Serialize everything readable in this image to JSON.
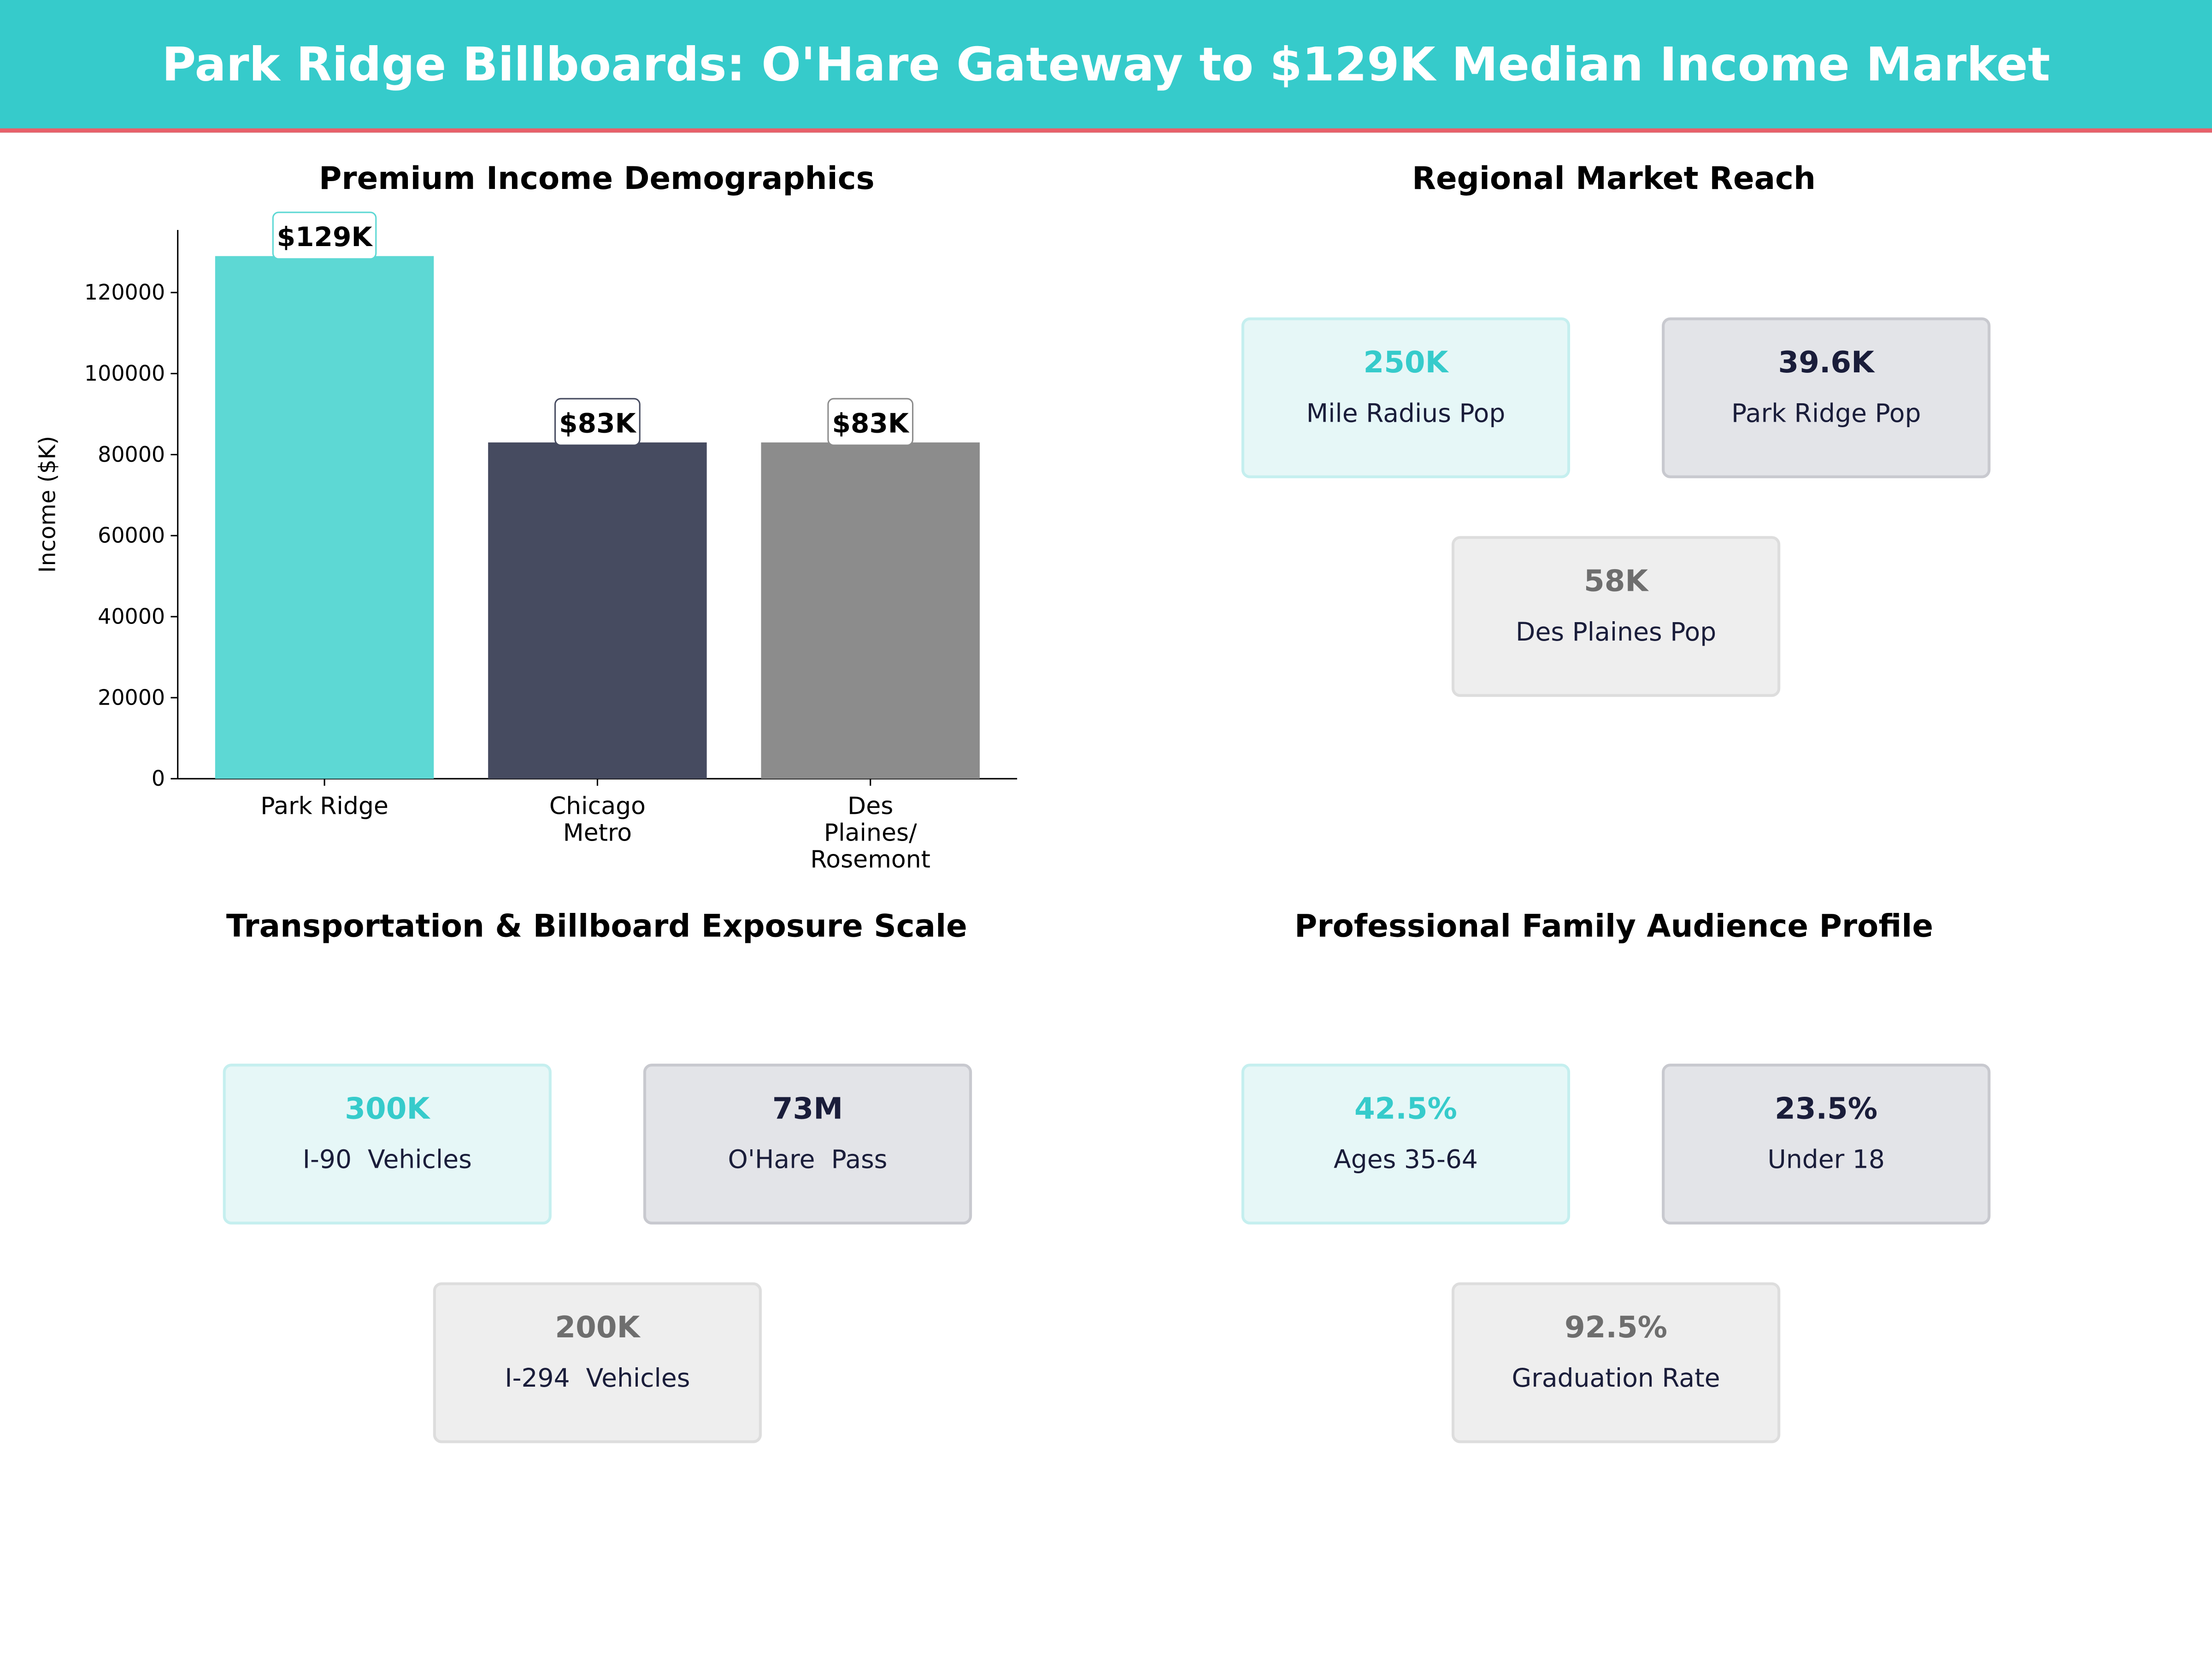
{
  "header": {
    "title": "Park Ridge Billboards: O'Hare Gateway to $129K Median Income Market"
  },
  "chart_data": {
    "type": "bar",
    "title": "Premium Income Demographics",
    "ylabel": "Income ($K)",
    "xlabel": "",
    "categories": [
      "Park Ridge",
      "Chicago\nMetro",
      "Des\nPlaines/\nRosemont"
    ],
    "values": [
      129000,
      83000,
      83000
    ],
    "data_labels": [
      "$129K",
      "$83K",
      "$83K"
    ],
    "colors": [
      "#5DD8D4",
      "#464B60",
      "#8C8C8C"
    ],
    "label_border_colors": [
      "#5DD8D4",
      "#464B60",
      "#8C8C8C"
    ],
    "ylim": [
      0,
      135450
    ],
    "yticks": [
      0,
      20000,
      40000,
      60000,
      80000,
      100000,
      120000
    ],
    "grid": false
  },
  "panels": [
    {
      "title": "Regional Market Reach",
      "cards": [
        {
          "value": "250K",
          "label": "Mile Radius Pop"
        },
        {
          "value": "39.6K",
          "label": "Park Ridge Pop"
        },
        {
          "value": "58K",
          "label": "Des Plaines Pop"
        }
      ]
    },
    {
      "title": "Transportation & Billboard Exposure Scale",
      "cards": [
        {
          "value": "300K",
          "label": "I-90  Vehicles"
        },
        {
          "value": "73M",
          "label": "O'Hare  Pass"
        },
        {
          "value": "200K",
          "label": "I-294  Vehicles"
        }
      ]
    },
    {
      "title": "Professional Family Audience Profile",
      "cards": [
        {
          "value": "42.5%",
          "label": "Ages 35-64"
        },
        {
          "value": "23.5%",
          "label": "Under 18"
        },
        {
          "value": "92.5%",
          "label": "Graduation Rate"
        }
      ]
    }
  ],
  "colors": {
    "brand": "#36CBCB",
    "accent": "#E8606A",
    "navy": "#1A1D3A"
  }
}
